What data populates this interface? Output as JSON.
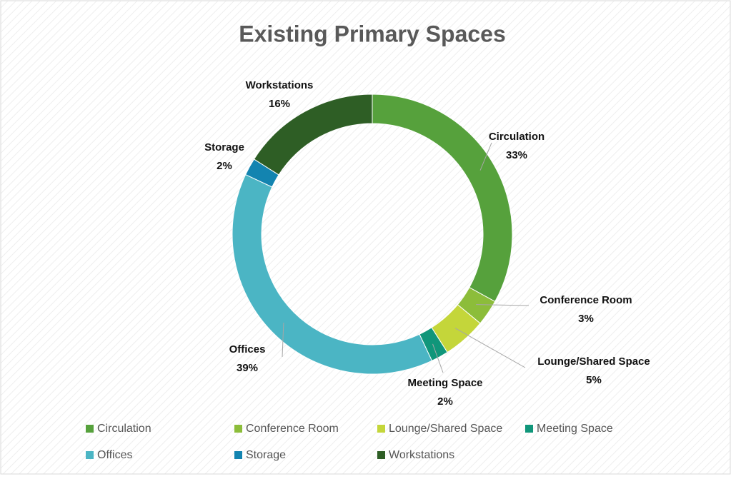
{
  "chart_data": {
    "type": "donut",
    "title": "Existing Primary Spaces",
    "categories": [
      "Circulation",
      "Conference Room",
      "Lounge/Shared Space",
      "Meeting Space",
      "Offices",
      "Storage",
      "Workstations"
    ],
    "values": [
      33,
      3,
      5,
      2,
      39,
      2,
      16
    ],
    "value_labels": [
      "33%",
      "3%",
      "5%",
      "2%",
      "39%",
      "2%",
      "16%"
    ],
    "colors": [
      "#56a13c",
      "#8cbd3a",
      "#c4d63a",
      "#10967a",
      "#4bb5c4",
      "#1384b0",
      "#2e5e25"
    ],
    "legend": "bottom"
  }
}
